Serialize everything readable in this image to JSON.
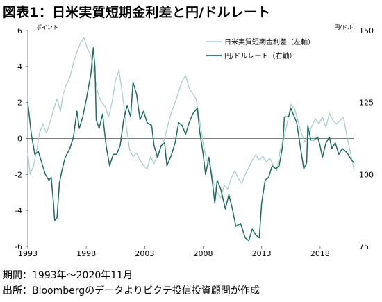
{
  "title": "図表1：日米実質短期金利差と円/ドルレート",
  "notes": {
    "period": "期間：1993年～2020年11月",
    "source": "出所：Bloombergのデータよりピクテ投信投資顧問が作成"
  },
  "chart_data": {
    "type": "line",
    "title": "図表1：日米実質短期金利差と円/ドルレート",
    "x_range": [
      1993,
      2020.92
    ],
    "x_ticks": [
      1993,
      1998,
      2003,
      2008,
      2013,
      2018
    ],
    "y_left": {
      "label": "ポイント",
      "range": [
        -6,
        6
      ],
      "ticks": [
        6,
        4,
        2,
        0,
        -2,
        -4,
        -6
      ]
    },
    "y_right": {
      "label": "円/ドル",
      "range": [
        75,
        150
      ],
      "ticks": [
        150,
        125,
        100,
        75
      ]
    },
    "grid": false,
    "zero_line": true,
    "legend_position": "top-right",
    "colors": {
      "spread": "#a9cfcb",
      "yen": "#1f6b66"
    },
    "series": [
      {
        "name": "日米実質短期金利差（左軸）",
        "axis": "left",
        "points": [
          [
            1993.0,
            -0.8
          ],
          [
            1993.2,
            -2.0
          ],
          [
            1993.5,
            -1.5
          ],
          [
            1993.8,
            -0.5
          ],
          [
            1994.0,
            0.3
          ],
          [
            1994.3,
            0.8
          ],
          [
            1994.6,
            0.3
          ],
          [
            1994.9,
            0.9
          ],
          [
            1995.2,
            1.6
          ],
          [
            1995.5,
            2.2
          ],
          [
            1995.8,
            1.5
          ],
          [
            1996.0,
            2.4
          ],
          [
            1996.3,
            3.0
          ],
          [
            1996.6,
            3.4
          ],
          [
            1996.9,
            4.2
          ],
          [
            1997.2,
            4.8
          ],
          [
            1997.5,
            5.3
          ],
          [
            1997.8,
            5.6
          ],
          [
            1998.1,
            5.0
          ],
          [
            1998.4,
            4.6
          ],
          [
            1998.7,
            3.5
          ],
          [
            1999.0,
            2.5
          ],
          [
            1999.3,
            2.0
          ],
          [
            1999.6,
            1.8
          ],
          [
            1999.9,
            1.2
          ],
          [
            2000.2,
            2.0
          ],
          [
            2000.5,
            3.2
          ],
          [
            2000.8,
            3.8
          ],
          [
            2001.1,
            2.4
          ],
          [
            2001.4,
            0.8
          ],
          [
            2001.7,
            -0.6
          ],
          [
            2002.0,
            -1.0
          ],
          [
            2002.3,
            -0.8
          ],
          [
            2002.6,
            -1.2
          ],
          [
            2002.9,
            -1.5
          ],
          [
            2003.2,
            -1.7
          ],
          [
            2003.5,
            -1.0
          ],
          [
            2003.8,
            -1.4
          ],
          [
            2004.1,
            -0.9
          ],
          [
            2004.4,
            -0.5
          ],
          [
            2004.7,
            0.0
          ],
          [
            2005.0,
            0.8
          ],
          [
            2005.3,
            1.5
          ],
          [
            2005.6,
            2.0
          ],
          [
            2005.9,
            2.6
          ],
          [
            2006.2,
            3.2
          ],
          [
            2006.5,
            3.5
          ],
          [
            2006.8,
            2.8
          ],
          [
            2007.1,
            2.5
          ],
          [
            2007.4,
            2.2
          ],
          [
            2007.7,
            1.0
          ],
          [
            2008.0,
            -0.3
          ],
          [
            2008.3,
            -1.2
          ],
          [
            2008.6,
            -1.5
          ],
          [
            2008.9,
            -2.5
          ],
          [
            2009.2,
            -3.0
          ],
          [
            2009.5,
            -3.3
          ],
          [
            2009.8,
            -2.6
          ],
          [
            2010.1,
            -2.8
          ],
          [
            2010.4,
            -2.2
          ],
          [
            2010.7,
            -1.8
          ],
          [
            2011.0,
            -2.2
          ],
          [
            2011.3,
            -2.5
          ],
          [
            2011.6,
            -2.0
          ],
          [
            2011.9,
            -1.6
          ],
          [
            2012.2,
            -1.2
          ],
          [
            2012.5,
            -0.9
          ],
          [
            2012.8,
            -1.2
          ],
          [
            2013.1,
            -1.0
          ],
          [
            2013.4,
            -1.3
          ],
          [
            2013.7,
            -1.1
          ],
          [
            2014.0,
            -1.5
          ],
          [
            2014.3,
            -1.8
          ],
          [
            2014.6,
            -0.6
          ],
          [
            2014.9,
            0.0
          ],
          [
            2015.2,
            0.9
          ],
          [
            2015.5,
            1.9
          ],
          [
            2015.8,
            1.7
          ],
          [
            2016.1,
            1.0
          ],
          [
            2016.4,
            0.3
          ],
          [
            2016.7,
            -0.2
          ],
          [
            2017.0,
            0.2
          ],
          [
            2017.3,
            0.7
          ],
          [
            2017.6,
            1.1
          ],
          [
            2017.9,
            0.8
          ],
          [
            2018.2,
            1.2
          ],
          [
            2018.5,
            0.6
          ],
          [
            2018.8,
            1.4
          ],
          [
            2019.1,
            1.0
          ],
          [
            2019.4,
            0.8
          ],
          [
            2019.7,
            1.0
          ],
          [
            2020.0,
            1.2
          ],
          [
            2020.3,
            0.1
          ],
          [
            2020.6,
            -0.8
          ],
          [
            2020.92,
            -1.8
          ]
        ]
      },
      {
        "name": "円/ドルレート（右軸）",
        "axis": "right",
        "points": [
          [
            1993.0,
            125
          ],
          [
            1993.3,
            114
          ],
          [
            1993.6,
            107
          ],
          [
            1993.9,
            108
          ],
          [
            1994.2,
            104
          ],
          [
            1994.5,
            100
          ],
          [
            1994.8,
            98
          ],
          [
            1995.0,
            99
          ],
          [
            1995.2,
            90
          ],
          [
            1995.3,
            84
          ],
          [
            1995.5,
            85
          ],
          [
            1995.7,
            97
          ],
          [
            1995.9,
            101
          ],
          [
            1996.2,
            106
          ],
          [
            1996.6,
            109
          ],
          [
            1996.9,
            113
          ],
          [
            1997.2,
            122
          ],
          [
            1997.4,
            116
          ],
          [
            1997.7,
            120
          ],
          [
            1998.0,
            126
          ],
          [
            1998.4,
            135
          ],
          [
            1998.6,
            144
          ],
          [
            1998.75,
            137
          ],
          [
            1998.85,
            119
          ],
          [
            1999.1,
            116
          ],
          [
            1999.4,
            121
          ],
          [
            1999.7,
            110
          ],
          [
            2000.0,
            103
          ],
          [
            2000.3,
            107
          ],
          [
            2000.6,
            107
          ],
          [
            2000.9,
            110
          ],
          [
            2001.2,
            119
          ],
          [
            2001.5,
            124
          ],
          [
            2001.8,
            120
          ],
          [
            2002.0,
            132
          ],
          [
            2002.3,
            128
          ],
          [
            2002.6,
            119
          ],
          [
            2002.9,
            122
          ],
          [
            2003.2,
            118
          ],
          [
            2003.6,
            117
          ],
          [
            2003.8,
            110
          ],
          [
            2004.1,
            106
          ],
          [
            2004.4,
            110
          ],
          [
            2004.7,
            111
          ],
          [
            2004.9,
            103
          ],
          [
            2005.3,
            107
          ],
          [
            2005.6,
            111
          ],
          [
            2005.9,
            118
          ],
          [
            2006.2,
            117
          ],
          [
            2006.5,
            114
          ],
          [
            2006.8,
            118
          ],
          [
            2007.1,
            121
          ],
          [
            2007.5,
            123
          ],
          [
            2007.7,
            115
          ],
          [
            2008.0,
            107
          ],
          [
            2008.2,
            100
          ],
          [
            2008.5,
            106
          ],
          [
            2008.8,
            97
          ],
          [
            2009.0,
            90
          ],
          [
            2009.2,
            98
          ],
          [
            2009.5,
            95
          ],
          [
            2009.9,
            88
          ],
          [
            2010.2,
            93
          ],
          [
            2010.5,
            88
          ],
          [
            2010.8,
            82
          ],
          [
            2011.2,
            83
          ],
          [
            2011.6,
            78
          ],
          [
            2011.9,
            77
          ],
          [
            2012.2,
            81
          ],
          [
            2012.5,
            79
          ],
          [
            2012.8,
            78
          ],
          [
            2013.0,
            90
          ],
          [
            2013.3,
            98
          ],
          [
            2013.6,
            99
          ],
          [
            2013.9,
            103
          ],
          [
            2014.2,
            102
          ],
          [
            2014.5,
            103
          ],
          [
            2014.8,
            110
          ],
          [
            2014.95,
            120
          ],
          [
            2015.3,
            120
          ],
          [
            2015.5,
            123
          ],
          [
            2015.8,
            120
          ],
          [
            2016.0,
            118
          ],
          [
            2016.3,
            110
          ],
          [
            2016.6,
            102
          ],
          [
            2016.85,
            104
          ],
          [
            2016.95,
            117
          ],
          [
            2017.2,
            112
          ],
          [
            2017.5,
            112
          ],
          [
            2017.8,
            113
          ],
          [
            2018.0,
            110
          ],
          [
            2018.2,
            106
          ],
          [
            2018.5,
            111
          ],
          [
            2018.8,
            113
          ],
          [
            2019.0,
            109
          ],
          [
            2019.3,
            111
          ],
          [
            2019.6,
            107
          ],
          [
            2019.9,
            109
          ],
          [
            2020.2,
            108
          ],
          [
            2020.4,
            107
          ],
          [
            2020.7,
            105
          ],
          [
            2020.92,
            104
          ]
        ]
      }
    ]
  }
}
